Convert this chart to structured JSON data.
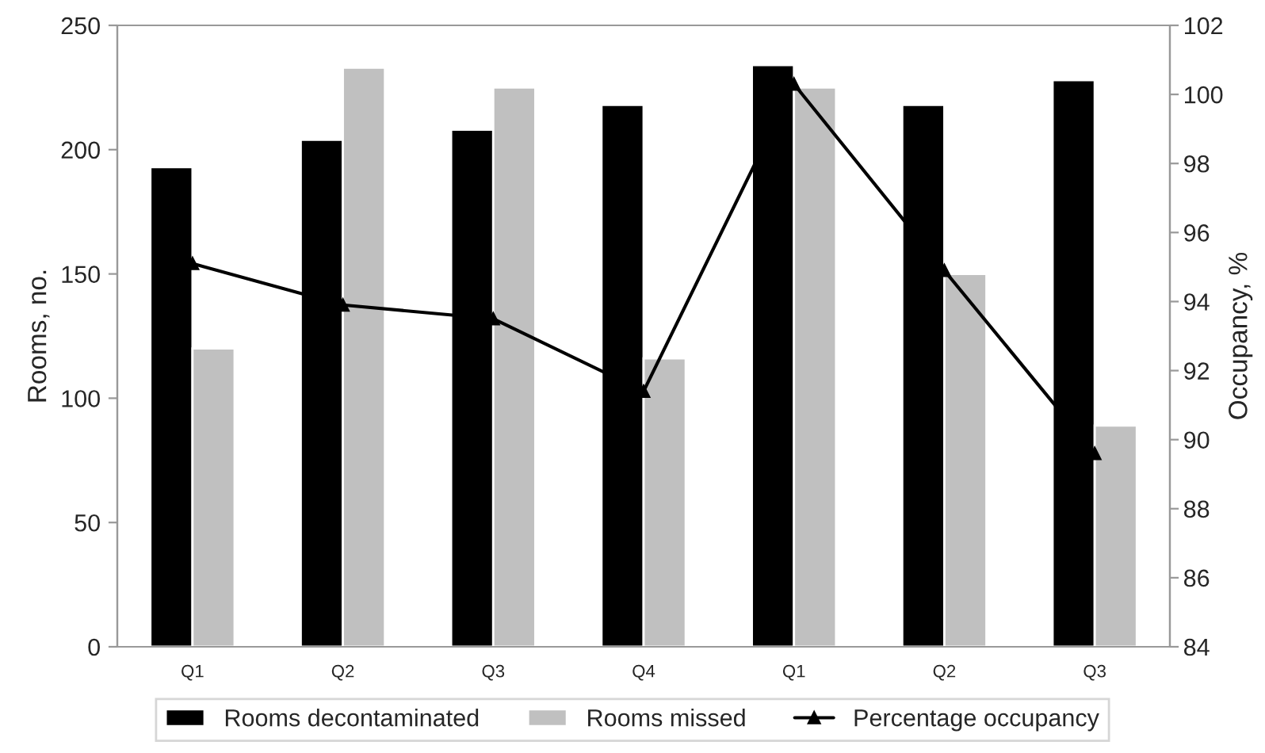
{
  "chart_data": {
    "type": "bar",
    "categories": [
      "Q1",
      "Q2",
      "Q3",
      "Q4",
      "Q1",
      "Q2",
      "Q3"
    ],
    "series": [
      {
        "name": "Rooms decontaminated",
        "color": "#000000",
        "values": [
          193,
          204,
          208,
          218,
          234,
          218,
          228
        ]
      },
      {
        "name": "Rooms missed",
        "color": "#c0c0c0",
        "values": [
          120,
          233,
          225,
          116,
          225,
          150,
          89
        ]
      },
      {
        "name": "Percentage occupancy",
        "color": "#000000",
        "type": "line",
        "axis": "y2",
        "marker": "triangle",
        "values": [
          95.1,
          93.9,
          93.5,
          91.4,
          100.3,
          94.9,
          89.6
        ]
      }
    ],
    "ylabel": "Rooms, no.",
    "y2label": "Occupancy, %",
    "ylim": [
      0,
      250
    ],
    "yticks": [
      0,
      50,
      100,
      150,
      200,
      250
    ],
    "y2lim": [
      84,
      102
    ],
    "y2ticks": [
      84,
      86,
      88,
      90,
      92,
      94,
      96,
      98,
      100,
      102
    ],
    "legend": "bottom",
    "grid": false
  }
}
